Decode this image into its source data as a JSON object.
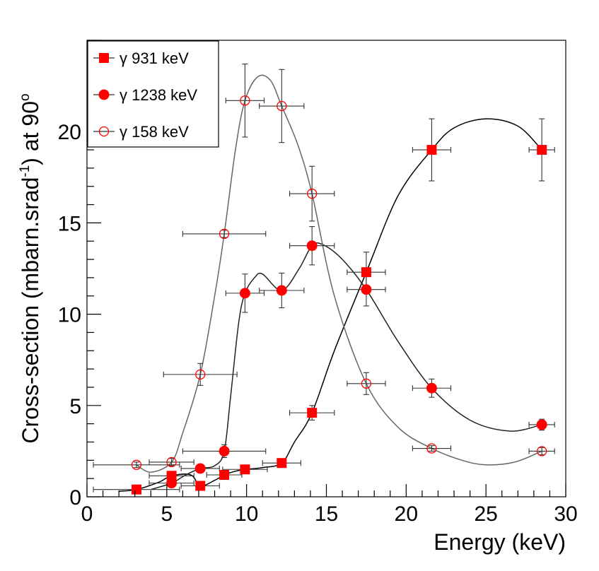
{
  "chart_data": {
    "type": "scatter",
    "title": "",
    "xlabel": "Energy (keV)",
    "ylabel_main": "Cross-section (mbarn.srad",
    "ylabel_sup1": "-1",
    "ylabel_mid": ") at 90",
    "ylabel_sup2": "o",
    "xlim": [
      0,
      30
    ],
    "ylim": [
      0,
      25
    ],
    "x_ticks": [
      0,
      5,
      10,
      15,
      20,
      25,
      30
    ],
    "y_ticks": [
      0,
      5,
      10,
      15,
      20
    ],
    "grid": false,
    "legend_position": "top-left",
    "series": [
      {
        "name": "γ 931 keV",
        "marker": "square",
        "color": "#ff0000",
        "curve_color": "#000000",
        "x": [
          3.1,
          5.3,
          7.1,
          8.6,
          9.9,
          12.2,
          14.1,
          17.5,
          21.6,
          28.5
        ],
        "y": [
          0.4,
          1.15,
          0.6,
          1.2,
          1.5,
          1.85,
          4.6,
          12.3,
          19.0,
          19.0
        ],
        "x_err": [
          2.7,
          1.4,
          1.2,
          1.1,
          1.4,
          1.2,
          1.4,
          1.2,
          1.2,
          0.8
        ],
        "y_err": [
          0.15,
          0.15,
          0.15,
          0.15,
          0.2,
          0.2,
          0.4,
          1.1,
          1.7,
          1.7
        ],
        "curve_x": [
          2.0,
          3.1,
          4.5,
          5.3,
          6.5,
          7.1,
          8.0,
          8.6,
          9.3,
          9.9,
          11.0,
          12.2,
          13.0,
          14.1,
          15.5,
          17.5,
          19.5,
          21.6,
          23.0,
          25.0,
          27.0,
          28.5
        ],
        "curve_y": [
          0.3,
          0.4,
          0.8,
          1.15,
          1.2,
          0.6,
          0.9,
          1.2,
          1.4,
          1.5,
          1.6,
          1.85,
          3.0,
          4.6,
          8.0,
          12.3,
          16.5,
          19.0,
          20.2,
          20.7,
          20.3,
          19.0
        ]
      },
      {
        "name": "γ 1238 keV",
        "marker": "circle-filled",
        "color": "#ff0000",
        "curve_color": "#222222",
        "x": [
          5.3,
          7.1,
          8.6,
          9.9,
          12.2,
          14.1,
          17.5,
          21.6,
          28.5
        ],
        "y": [
          0.75,
          1.55,
          2.5,
          11.15,
          11.3,
          13.75,
          11.35,
          5.95,
          3.95
        ],
        "x_err": [
          1.4,
          1.2,
          2.6,
          1.2,
          1.4,
          1.4,
          1.2,
          1.2,
          0.8
        ],
        "y_err": [
          0.1,
          0.2,
          0.35,
          1.05,
          0.95,
          1.05,
          0.9,
          0.5,
          0.3
        ],
        "curve_x": [
          4.0,
          5.3,
          6.2,
          7.1,
          8.0,
          8.6,
          9.0,
          9.5,
          9.9,
          10.5,
          11.0,
          12.2,
          13.3,
          14.1,
          14.8,
          16.0,
          17.5,
          19.5,
          21.6,
          24.0,
          26.5,
          28.5
        ],
        "curve_y": [
          0.4,
          0.75,
          1.2,
          1.55,
          1.7,
          2.5,
          5.5,
          9.5,
          11.15,
          12.0,
          12.2,
          11.3,
          12.5,
          13.75,
          13.8,
          13.0,
          11.35,
          8.5,
          5.95,
          4.2,
          3.6,
          3.95
        ]
      },
      {
        "name": "γ 158 keV",
        "marker": "circle-open",
        "color": "#ff0000",
        "curve_color": "#666666",
        "x": [
          3.1,
          5.3,
          7.1,
          8.6,
          9.9,
          12.2,
          14.1,
          17.5,
          21.6,
          28.5
        ],
        "y": [
          1.75,
          1.9,
          6.7,
          14.4,
          21.7,
          21.4,
          16.6,
          6.2,
          2.65,
          2.5
        ],
        "x_err": [
          2.7,
          1.4,
          2.3,
          2.6,
          1.2,
          1.4,
          1.4,
          1.2,
          1.2,
          0.8
        ],
        "y_err": [
          0.15,
          0.2,
          0.6,
          0.2,
          2.0,
          2.0,
          1.5,
          0.6,
          0.15,
          0.2
        ],
        "curve_x": [
          3.1,
          4.0,
          5.3,
          6.0,
          7.1,
          8.0,
          8.6,
          9.3,
          9.9,
          10.7,
          11.5,
          12.2,
          13.2,
          14.1,
          15.5,
          17.5,
          19.5,
          21.6,
          23.5,
          25.0,
          26.8,
          28.5
        ],
        "curve_y": [
          1.75,
          1.35,
          1.9,
          3.5,
          6.7,
          11.0,
          14.4,
          19.0,
          21.7,
          23.0,
          22.8,
          21.4,
          19.3,
          16.6,
          11.0,
          6.2,
          3.8,
          2.65,
          2.0,
          1.75,
          1.9,
          2.5
        ]
      }
    ]
  }
}
